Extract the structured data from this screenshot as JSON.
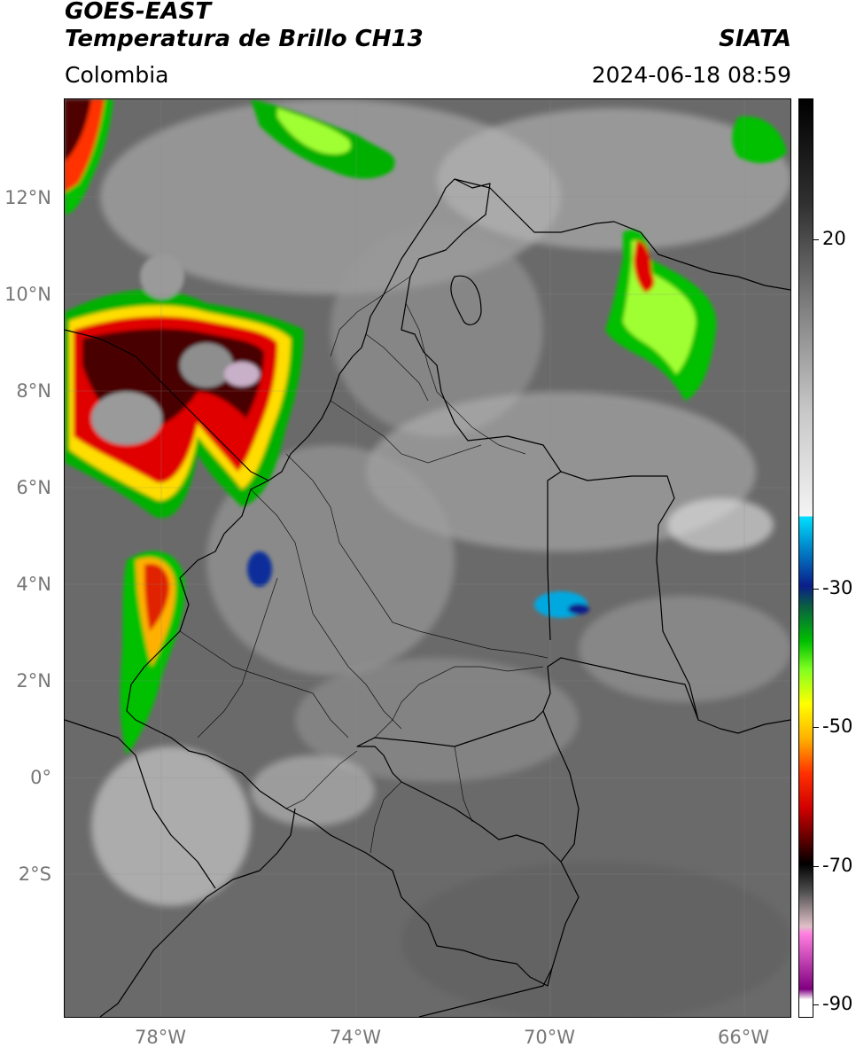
{
  "header": {
    "title_line1": "GOES-EAST",
    "title_line2": "Temperatura de Brillo CH13",
    "brand": "SIATA",
    "region": "Colombia",
    "timestamp": "2024-06-18 08:59"
  },
  "map": {
    "lat_labels": [
      "12°N",
      "10°N",
      "8°N",
      "6°N",
      "4°N",
      "2°N",
      "0°",
      "2°S"
    ],
    "lon_labels": [
      "78°W",
      "74°W",
      "70°W",
      "66°W"
    ],
    "extent": {
      "lon_min": -80,
      "lon_max": -65,
      "lat_min": -5,
      "lat_max": 14
    },
    "grid": true,
    "background_color": "#6e6e6e",
    "border_color": "#000000"
  },
  "colorbar": {
    "tick_labels": [
      "20",
      "-30",
      "-50",
      "-70",
      "-90"
    ],
    "tick_values": [
      20,
      -30,
      -50,
      -70,
      -90
    ],
    "range": [
      40,
      -92
    ],
    "stops": [
      {
        "v": 40,
        "c": "#000000"
      },
      {
        "v": 25,
        "c": "#303030"
      },
      {
        "v": 10,
        "c": "#808080"
      },
      {
        "v": -5,
        "c": "#c8c8c8"
      },
      {
        "v": -20,
        "c": "#f4f4f4"
      },
      {
        "v": -20.01,
        "c": "#00e0ff"
      },
      {
        "v": -24,
        "c": "#0090d0"
      },
      {
        "v": -30,
        "c": "#0a1e8a"
      },
      {
        "v": -33,
        "c": "#0a6040"
      },
      {
        "v": -38,
        "c": "#00c000"
      },
      {
        "v": -42,
        "c": "#80ff20"
      },
      {
        "v": -47,
        "c": "#ffff00"
      },
      {
        "v": -52,
        "c": "#ffb000"
      },
      {
        "v": -57,
        "c": "#ff3000"
      },
      {
        "v": -62,
        "c": "#d00000"
      },
      {
        "v": -67,
        "c": "#500000"
      },
      {
        "v": -70,
        "c": "#000000"
      },
      {
        "v": -74,
        "c": "#505050"
      },
      {
        "v": -79,
        "c": "#e0c0c8"
      },
      {
        "v": -80,
        "c": "#ff80e0"
      },
      {
        "v": -88,
        "c": "#800080"
      },
      {
        "v": -89.5,
        "c": "#ffffff"
      },
      {
        "v": -92,
        "c": "#ffffff"
      }
    ]
  }
}
